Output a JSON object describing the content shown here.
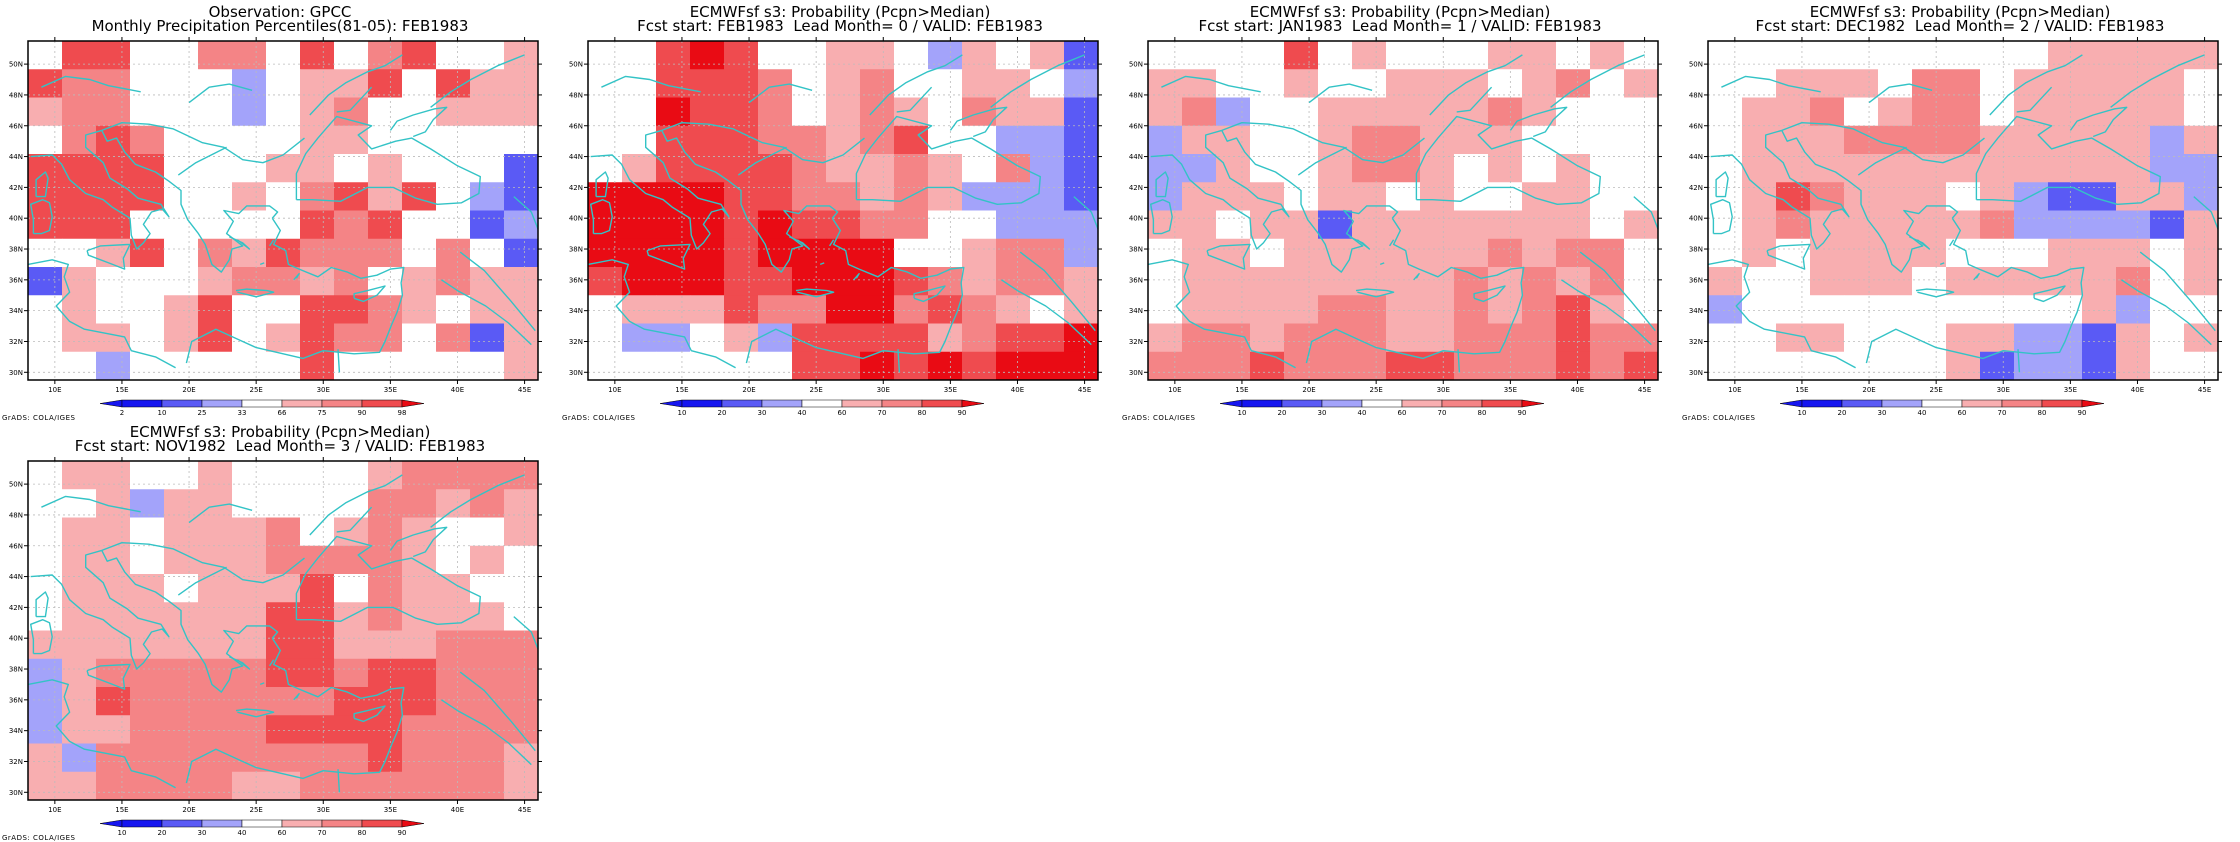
{
  "footer_text": "GrADS: COLA/IGES",
  "palette": {
    "blue_dark": "#1616f0",
    "blue_mid": "#5a5af5",
    "blue_light": "#a3a3fa",
    "white": "#ffffff",
    "red_light": "#f8aeb0",
    "red_mid": "#f48486",
    "red_strong": "#ef4b4f",
    "red_dark": "#e90b14",
    "coast": "#33c3c6"
  },
  "map_axes": {
    "lon_ticks": [
      "10E",
      "15E",
      "20E",
      "25E",
      "30E",
      "35E",
      "40E",
      "45E"
    ],
    "lat_ticks": [
      "30N",
      "32N",
      "34N",
      "36N",
      "38N",
      "40N",
      "42N",
      "44N",
      "46N",
      "48N",
      "50N"
    ]
  },
  "panels": [
    {
      "id": "obs-gpcc",
      "title_line1": "Observation: GPCC",
      "title_line2": "Monthly Precipitation Percentiles(81-05): FEB1983",
      "colorbar_labels": [
        "2",
        "10",
        "25",
        "33",
        "66",
        "75",
        "90",
        "98"
      ],
      "grid": [
        "wrrwwmmwrwmrwwl",
        "rmmwwwbwllrwrll",
        "lmmwwwbwlmwwlll",
        "wmrmwwwwllwwwww",
        "rrsrwwwllwlwwwB",
        "ssrrwwlwmrlswbB",
        "ssrwwwwwrmswwBb",
        "wwlrwmlrmmmwmwB",
        "Blwwwlmmlmwlmll",
        "wlwwlrwwsrmlwll",
        "wllwlswlsmmwmBl",
        "wwbwwwwwswwwwwl"
      ]
    },
    {
      "id": "fcst-lead0",
      "title_line1": "ECMWFsf s3: Probability (Pcpn>Median)",
      "title_line2": "Fcst start: FEB1983  Lead Month= 0 / VALID: FEB1983",
      "colorbar_labels": [
        "10",
        "20",
        "30",
        "40",
        "60",
        "70",
        "80",
        "90"
      ],
      "grid": [
        "wwrDrwwllwblwlB",
        "wwsrsmwlmwwllwb",
        "wwDsrmwlmlwmllB",
        "wwsrrmmlmswwbbB",
        "wlrrrrmllmlwmbB",
        "DDDDsrmmlmlbbbB",
        "DDDDsDsrmmwwbbb",
        "DDDDrDDDDwwlmmb",
        "rDDDsrDDDrmlmml",
        "wlllrmmDDmrmlwl",
        "wbbwlbrsrrlmrsD",
        "wwwwwwrrDsDrDDD"
      ]
    },
    {
      "id": "fcst-lead1",
      "title_line1": "ECMWFsf s3: Probability (Pcpn>Median)",
      "title_line2": "Fcst start: JAN1983  Lead Month= 1 / VALID: FEB1983",
      "colorbar_labels": [
        "10",
        "20",
        "30",
        "40",
        "60",
        "70",
        "80",
        "90"
      ],
      "grid": [
        "wwwwrwlwwwllwlw",
        "llwwlwwlllwlmwl",
        "lmbwwlllllmlwww",
        "bllwwlmmlllwwww",
        "bblwwlmmlwlwlww",
        "blllwllwlwwllww",
        "llwllBlllllllwl",
        "wllwllllllmlmmw",
        "wllllllllmlmlmw",
        "wllllmmllmlmrlw",
        "lmmlmmmllmmmrmm",
        "mmmrmmmrrmmmrmr"
      ]
    },
    {
      "id": "fcst-lead2",
      "title_line1": "ECMWFsf s3: Probability (Pcpn>Median)",
      "title_line2": "Fcst start: DEC1982  Lead Month= 2 / VALID: FEB1983",
      "colorbar_labels": [
        "10",
        "20",
        "30",
        "40",
        "60",
        "70",
        "80",
        "90"
      ],
      "grid": [
        "wwwwwwwwwwlllll",
        "wwlllwmmwlllllw",
        "wllmwlmmwlllllw",
        "wlllmmmmlllllbl",
        "wllllllllllllbb",
        "wlrmlllwlbBBllb",
        "wlmlllllmbbbbBl",
        "wlwllllwwwlllwl",
        "lwwlllwlllllmwl",
        "bwwwwwwwwwwlbww",
        "wwllwwwllbbBlwl",
        "wwwwwwwlBbbBlww"
      ]
    },
    {
      "id": "fcst-lead3",
      "title_line1": "ECMWFsf s3: Probability (Pcpn>Median)",
      "title_line2": "Fcst start: NOV1982  Lead Month= 3 / VALID: FEB1983",
      "colorbar_labels": [
        "10",
        "20",
        "30",
        "40",
        "60",
        "70",
        "80",
        "90"
      ],
      "grid": [
        "wllwwlwwwwlmmmm",
        "wwlbllwwwwmmlml",
        "wllwlllmwlmlwwl",
        "wllwlllmmmmlwlw",
        "wlllwlllrwmllww",
        "wllllllrrlmlllw",
        "lllllllrrlllmmm",
        "blmmmmmrrmrrmmm",
        "blrmmmmmmrrrmmm",
        "bllmmmmrrrrmmmm",
        "lbmmmmmmmmrmmml",
        "llmmmmllmmmmmml"
      ]
    }
  ]
}
